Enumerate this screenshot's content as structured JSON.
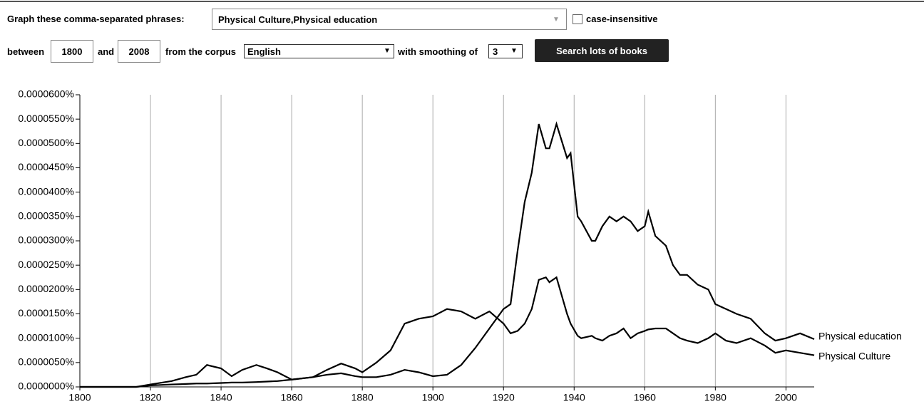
{
  "form": {
    "phrases_label": "Graph these comma-separated phrases:",
    "phrases": "Physical Culture,Physical education",
    "case_label": "case-insensitive",
    "between_label": "between",
    "start_year": "1800",
    "and_label": "and",
    "end_year": "2008",
    "corpus_label": "from the corpus",
    "corpus": "English",
    "smoothing_label": "with smoothing of",
    "smoothing": "3",
    "button": "Search lots of books"
  },
  "chart_data": {
    "type": "line",
    "x": [
      1800,
      1816,
      1820,
      1826,
      1830,
      1833,
      1836,
      1840,
      1843,
      1846,
      1850,
      1853,
      1856,
      1860,
      1866,
      1870,
      1874,
      1878,
      1880,
      1884,
      1888,
      1892,
      1896,
      1900,
      1904,
      1908,
      1912,
      1916,
      1920,
      1922,
      1924,
      1926,
      1928,
      1930,
      1932,
      1933,
      1935,
      1938,
      1939,
      1941,
      1942,
      1945,
      1946,
      1948,
      1950,
      1952,
      1954,
      1956,
      1958,
      1960,
      1961,
      1963,
      1966,
      1968,
      1970,
      1972,
      1975,
      1978,
      1980,
      1983,
      1986,
      1990,
      1994,
      1997,
      2000,
      2004,
      2008
    ],
    "series": [
      {
        "name": "Physical education",
        "color": "#000000",
        "values": [
          0,
          0,
          3e-07,
          5e-07,
          6e-07,
          7e-07,
          7e-07,
          8e-07,
          9e-07,
          9e-07,
          1e-06,
          1.1e-06,
          1.2e-06,
          1.5e-06,
          2e-06,
          2.5e-06,
          2.8e-06,
          2.2e-06,
          2e-06,
          2e-06,
          2.5e-06,
          3.5e-06,
          3e-06,
          2.2e-06,
          2.5e-06,
          4.5e-06,
          8e-06,
          1.2e-05,
          1.6e-05,
          1.7e-05,
          2.8e-05,
          3.8e-05,
          4.4e-05,
          5.4e-05,
          4.9e-05,
          4.9e-05,
          5.4e-05,
          4.7e-05,
          4.8e-05,
          3.5e-05,
          3.4e-05,
          3e-05,
          3e-05,
          3.3e-05,
          3.5e-05,
          3.4e-05,
          3.5e-05,
          3.4e-05,
          3.2e-05,
          3.3e-05,
          3.6e-05,
          3.1e-05,
          2.9e-05,
          2.5e-05,
          2.3e-05,
          2.3e-05,
          2.1e-05,
          2e-05,
          1.7e-05,
          1.6e-05,
          1.5e-05,
          1.4e-05,
          1.1e-05,
          9.5e-06,
          1e-05,
          1.1e-05,
          9.8e-06
        ]
      },
      {
        "name": "Physical Culture",
        "color": "#000000",
        "values": [
          0,
          0,
          5e-07,
          1.2e-06,
          2e-06,
          2.5e-06,
          4.5e-06,
          3.8e-06,
          2.2e-06,
          3.5e-06,
          4.5e-06,
          3.8e-06,
          3e-06,
          1.5e-06,
          2e-06,
          3.5e-06,
          4.8e-06,
          3.8e-06,
          3e-06,
          5e-06,
          7.5e-06,
          1.3e-05,
          1.4e-05,
          1.45e-05,
          1.6e-05,
          1.55e-05,
          1.4e-05,
          1.55e-05,
          1.3e-05,
          1.1e-05,
          1.15e-05,
          1.3e-05,
          1.6e-05,
          2.2e-05,
          2.25e-05,
          2.15e-05,
          2.25e-05,
          1.5e-05,
          1.3e-05,
          1.05e-05,
          1e-05,
          1.05e-05,
          1e-05,
          9.5e-06,
          1.05e-05,
          1.1e-05,
          1.2e-05,
          1e-05,
          1.1e-05,
          1.15e-05,
          1.18e-05,
          1.2e-05,
          1.2e-05,
          1.1e-05,
          1e-05,
          9.5e-06,
          9e-06,
          1e-05,
          1.1e-05,
          9.5e-06,
          9e-06,
          1e-05,
          8.5e-06,
          7e-06,
          7.5e-06,
          7e-06,
          6.5e-06
        ]
      }
    ],
    "xlim": [
      1800,
      2008
    ],
    "xticks": [
      1800,
      1820,
      1840,
      1860,
      1880,
      1900,
      1920,
      1940,
      1960,
      1980,
      2000
    ],
    "ylim": [
      0,
      6e-05
    ],
    "yticks": [
      {
        "value": 0,
        "label": "0.0000000%"
      },
      {
        "value": 5e-06,
        "label": "0.0000050%"
      },
      {
        "value": 1e-05,
        "label": "0.0000100%"
      },
      {
        "value": 1.5e-05,
        "label": "0.0000150%"
      },
      {
        "value": 2e-05,
        "label": "0.0000200%"
      },
      {
        "value": 2.5e-05,
        "label": "0.0000250%"
      },
      {
        "value": 3e-05,
        "label": "0.0000300%"
      },
      {
        "value": 3.5e-05,
        "label": "0.0000350%"
      },
      {
        "value": 4e-05,
        "label": "0.0000400%"
      },
      {
        "value": 4.5e-05,
        "label": "0.0000450%"
      },
      {
        "value": 5e-05,
        "label": "0.0000500%"
      },
      {
        "value": 5.5e-05,
        "label": "0.0000550%"
      },
      {
        "value": 6e-05,
        "label": "0.0000600%"
      }
    ],
    "xgrid": true
  }
}
